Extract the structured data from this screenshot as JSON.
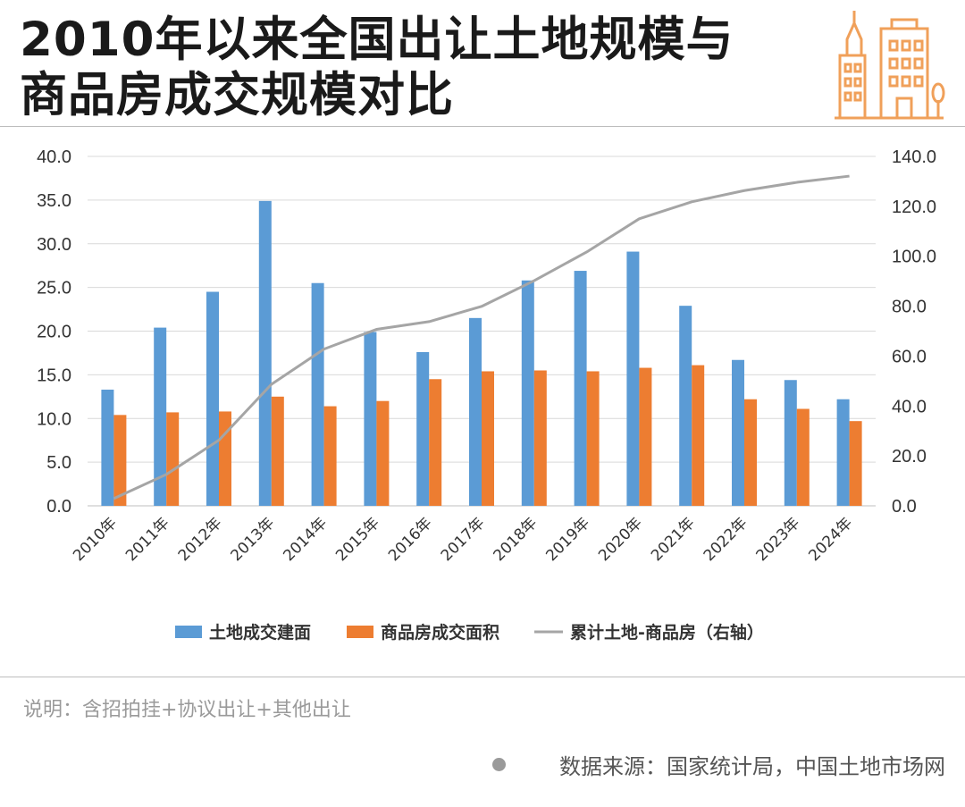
{
  "header": {
    "title_line1": "2010年以来全国出让土地规模与",
    "title_line2": "商品房成交规模对比",
    "logo_icon": "buildings-icon",
    "logo_color": "#F0A05A"
  },
  "chart_data": {
    "type": "bar",
    "title": "2010年以来全国出让土地规模与商品房成交规模对比",
    "categories": [
      "2010年",
      "2011年",
      "2012年",
      "2013年",
      "2014年",
      "2015年",
      "2016年",
      "2017年",
      "2018年",
      "2019年",
      "2020年",
      "2021年",
      "2022年",
      "2023年",
      "2024年"
    ],
    "y_left": {
      "ylim": [
        0,
        40
      ],
      "ticks": [
        "0.0",
        "5.0",
        "10.0",
        "15.0",
        "20.0",
        "25.0",
        "30.0",
        "35.0",
        "40.0"
      ]
    },
    "y_right": {
      "ylim": [
        0,
        140
      ],
      "ticks": [
        "0.0",
        "20.0",
        "40.0",
        "60.0",
        "80.0",
        "100.0",
        "120.0",
        "140.0"
      ]
    },
    "series": [
      {
        "name": "土地成交建面",
        "type": "bar",
        "axis": "left",
        "color": "#5B9BD5",
        "values": [
          13.3,
          20.4,
          24.5,
          34.9,
          25.5,
          19.9,
          17.6,
          21.5,
          25.8,
          26.9,
          29.1,
          22.9,
          16.7,
          14.4,
          12.2
        ]
      },
      {
        "name": "商品房成交面积",
        "type": "bar",
        "axis": "left",
        "color": "#ED7D31",
        "values": [
          10.4,
          10.7,
          10.8,
          12.5,
          11.4,
          12.0,
          14.5,
          15.4,
          15.5,
          15.4,
          15.8,
          16.1,
          12.2,
          11.1,
          9.7
        ]
      },
      {
        "name": "累计土地-商品房（右轴）",
        "type": "line",
        "axis": "right",
        "color": "#A5A5A5",
        "values": [
          2.9,
          12.6,
          26.3,
          48.7,
          62.8,
          70.7,
          73.8,
          79.9,
          90.2,
          101.7,
          115.0,
          121.8,
          126.3,
          129.6,
          132.1
        ]
      }
    ],
    "legend_position": "bottom",
    "grid": true
  },
  "footer": {
    "note": "说明：含招拍挂+协议出让+其他出让",
    "source": "数据来源：国家统计局，中国土地市场网"
  }
}
